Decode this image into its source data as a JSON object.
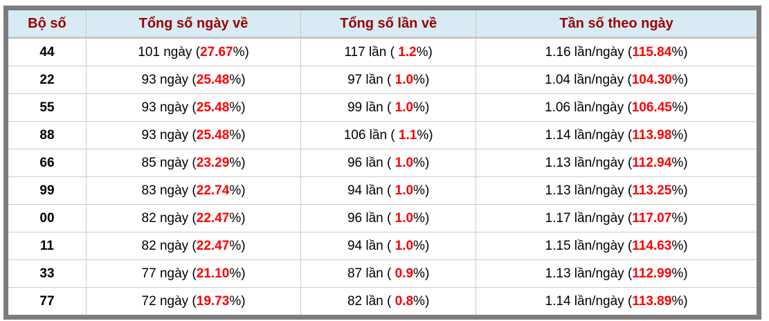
{
  "colors": {
    "frame_gray": "#7d7d7d",
    "header_bg": "#d8ebf5",
    "header_text": "#990000",
    "accent_red": "#ff0000",
    "divider_gray": "#cccccc"
  },
  "table": {
    "header": {
      "columns": [
        "Bộ số",
        "Tổng số ngày về",
        "Tổng số lần về",
        "Tần số theo ngày"
      ]
    },
    "rows": [
      {
        "pair": "44",
        "days": {
          "pre": "101 ngày (",
          "red": "27.67",
          "post": "%)"
        },
        "times": {
          "pre": "117 lần ( ",
          "red": "1.2",
          "post": "%)"
        },
        "freq": {
          "pre": "1.16 lần/ngày (",
          "red": "115.84",
          "post": "%)"
        }
      },
      {
        "pair": "22",
        "days": {
          "pre": "93 ngày (",
          "red": "25.48",
          "post": "%)"
        },
        "times": {
          "pre": "97 lần ( ",
          "red": "1.0",
          "post": "%)"
        },
        "freq": {
          "pre": "1.04 lần/ngày (",
          "red": "104.30",
          "post": "%)"
        }
      },
      {
        "pair": "55",
        "days": {
          "pre": "93 ngày (",
          "red": "25.48",
          "post": "%)"
        },
        "times": {
          "pre": "99 lần ( ",
          "red": "1.0",
          "post": "%)"
        },
        "freq": {
          "pre": "1.06 lần/ngày (",
          "red": "106.45",
          "post": "%)"
        }
      },
      {
        "pair": "88",
        "days": {
          "pre": "93 ngày (",
          "red": "25.48",
          "post": "%)"
        },
        "times": {
          "pre": "106 lần ( ",
          "red": "1.1",
          "post": "%)"
        },
        "freq": {
          "pre": "1.14 lần/ngày (",
          "red": "113.98",
          "post": "%)"
        }
      },
      {
        "pair": "66",
        "days": {
          "pre": "85 ngày (",
          "red": "23.29",
          "post": "%)"
        },
        "times": {
          "pre": "96 lần ( ",
          "red": "1.0",
          "post": "%)"
        },
        "freq": {
          "pre": "1.13 lần/ngày (",
          "red": "112.94",
          "post": "%)"
        }
      },
      {
        "pair": "99",
        "days": {
          "pre": "83 ngày (",
          "red": "22.74",
          "post": "%)"
        },
        "times": {
          "pre": "94 lần ( ",
          "red": "1.0",
          "post": "%)"
        },
        "freq": {
          "pre": "1.13 lần/ngày (",
          "red": "113.25",
          "post": "%)"
        }
      },
      {
        "pair": "00",
        "days": {
          "pre": "82 ngày (",
          "red": "22.47",
          "post": "%)"
        },
        "times": {
          "pre": "96 lần ( ",
          "red": "1.0",
          "post": "%)"
        },
        "freq": {
          "pre": "1.17 lần/ngày (",
          "red": "117.07",
          "post": "%)"
        }
      },
      {
        "pair": "11",
        "days": {
          "pre": "82 ngày (",
          "red": "22.47",
          "post": "%)"
        },
        "times": {
          "pre": "94 lần ( ",
          "red": "1.0",
          "post": "%)"
        },
        "freq": {
          "pre": "1.15 lần/ngày (",
          "red": "114.63",
          "post": "%)"
        }
      },
      {
        "pair": "33",
        "days": {
          "pre": "77 ngày (",
          "red": "21.10",
          "post": "%)"
        },
        "times": {
          "pre": "87 lần ( ",
          "red": "0.9",
          "post": "%)"
        },
        "freq": {
          "pre": "1.13 lần/ngày (",
          "red": "112.99",
          "post": "%)"
        }
      },
      {
        "pair": "77",
        "days": {
          "pre": "72 ngày (",
          "red": "19.73",
          "post": "%)"
        },
        "times": {
          "pre": "82 lần ( ",
          "red": "0.8",
          "post": "%)"
        },
        "freq": {
          "pre": "1.14 lần/ngày (",
          "red": "113.89",
          "post": "%)"
        }
      }
    ]
  }
}
